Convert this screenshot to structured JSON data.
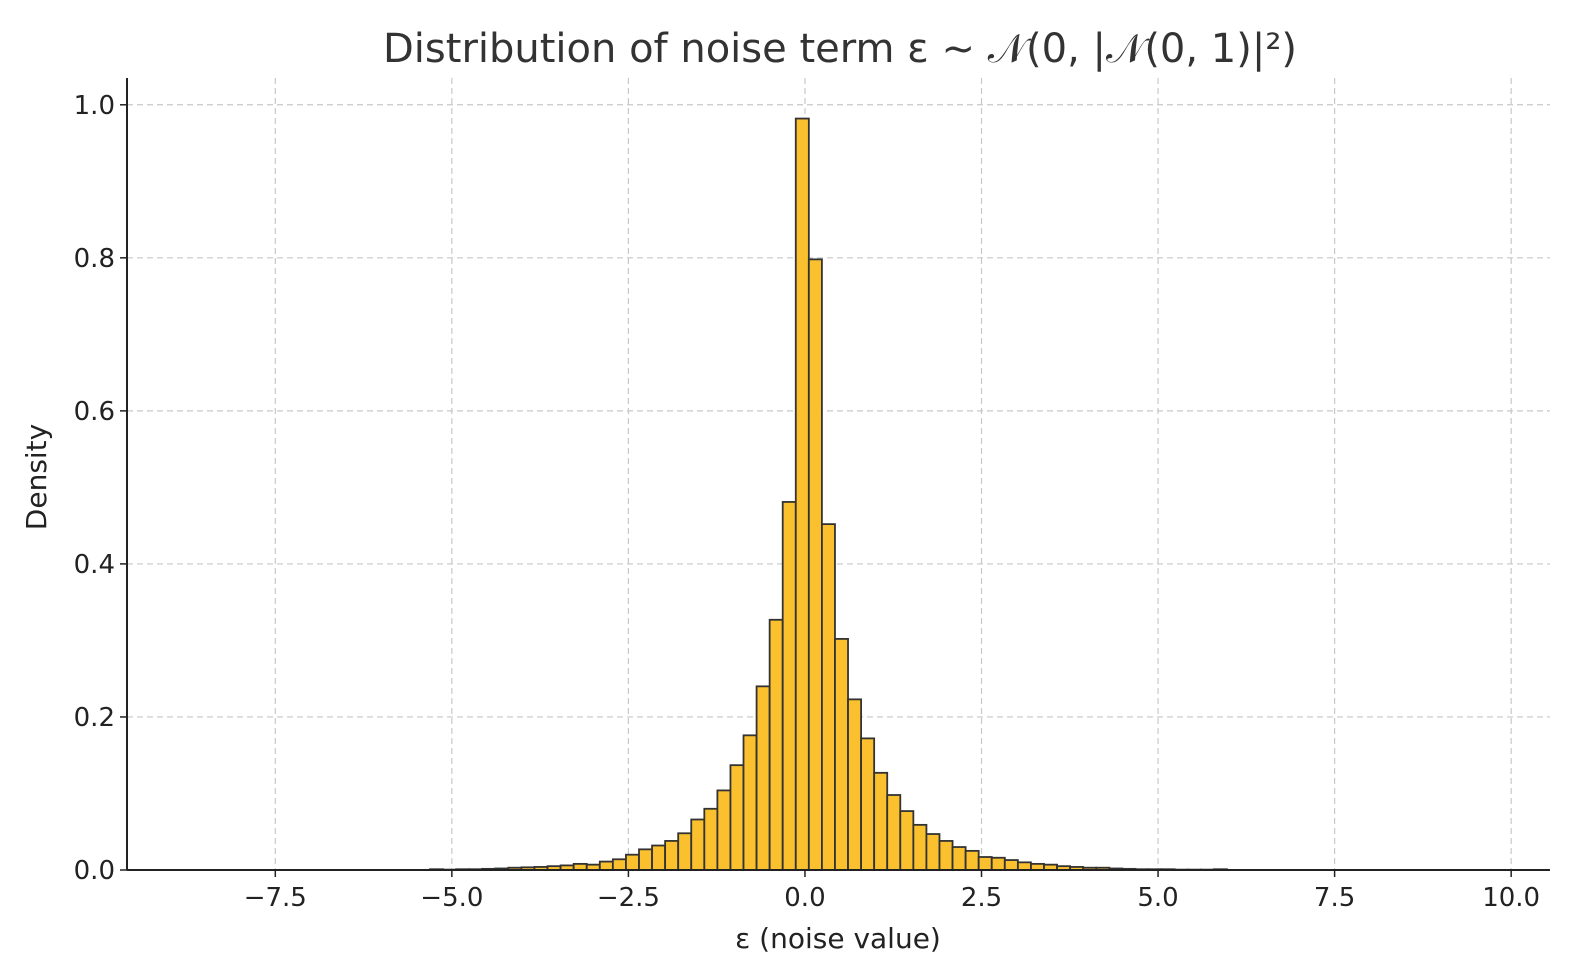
{
  "chart_data": {
    "type": "bar",
    "title": "Distribution of noise term ε ~ 𝒩(0, |𝒩(0, 1)|²)",
    "xlabel": "ε (noise value)",
    "ylabel": "Density",
    "xlim": [
      -9.6,
      10.55
    ],
    "ylim": [
      0,
      1.035
    ],
    "grid": true,
    "colors": {
      "bar_fill": "#fbc02d",
      "bar_edge": "#333333"
    },
    "x_ticks": [
      {
        "value": -7.5,
        "label": "−7.5"
      },
      {
        "value": -5.0,
        "label": "−5.0"
      },
      {
        "value": -2.5,
        "label": "−2.5"
      },
      {
        "value": 0.0,
        "label": "0.0"
      },
      {
        "value": 2.5,
        "label": "2.5"
      },
      {
        "value": 5.0,
        "label": "5.0"
      },
      {
        "value": 7.5,
        "label": "7.5"
      },
      {
        "value": 10.0,
        "label": "10.0"
      }
    ],
    "y_ticks": [
      {
        "value": 0.0,
        "label": "0.0"
      },
      {
        "value": 0.2,
        "label": "0.2"
      },
      {
        "value": 0.4,
        "label": "0.4"
      },
      {
        "value": 0.6,
        "label": "0.6"
      },
      {
        "value": 0.8,
        "label": "0.8"
      },
      {
        "value": 1.0,
        "label": "1.0"
      }
    ],
    "bin_width": 0.185,
    "bins_left": [
      -5.31,
      -5.125,
      -4.94,
      -4.755,
      -4.57,
      -4.385,
      -4.2,
      -4.015,
      -3.83,
      -3.645,
      -3.46,
      -3.275,
      -3.09,
      -2.905,
      -2.72,
      -2.535,
      -2.35,
      -2.165,
      -1.98,
      -1.795,
      -1.61,
      -1.425,
      -1.24,
      -1.055,
      -0.87,
      -0.685,
      -0.5,
      -0.315,
      -0.13,
      0.055,
      0.24,
      0.425,
      0.61,
      0.795,
      0.98,
      1.165,
      1.35,
      1.535,
      1.72,
      1.905,
      2.09,
      2.275,
      2.46,
      2.645,
      2.83,
      3.015,
      3.2,
      3.385,
      3.57,
      3.755,
      3.94,
      4.125,
      4.31,
      4.495,
      4.68,
      4.865,
      5.05,
      5.235,
      5.42,
      5.605,
      5.79
    ],
    "density": [
      0.001,
      0.0005,
      0.001,
      0.001,
      0.0015,
      0.002,
      0.003,
      0.0035,
      0.004,
      0.005,
      0.006,
      0.008,
      0.007,
      0.011,
      0.014,
      0.02,
      0.027,
      0.032,
      0.038,
      0.048,
      0.066,
      0.08,
      0.104,
      0.137,
      0.176,
      0.24,
      0.327,
      0.481,
      0.982,
      0.798,
      0.452,
      0.302,
      0.223,
      0.172,
      0.127,
      0.098,
      0.077,
      0.059,
      0.047,
      0.038,
      0.03,
      0.025,
      0.017,
      0.016,
      0.013,
      0.01,
      0.008,
      0.007,
      0.005,
      0.004,
      0.003,
      0.003,
      0.002,
      0.0015,
      0.001,
      0.001,
      0.001,
      0.0005,
      0.0005,
      0.0005,
      0.001
    ]
  }
}
